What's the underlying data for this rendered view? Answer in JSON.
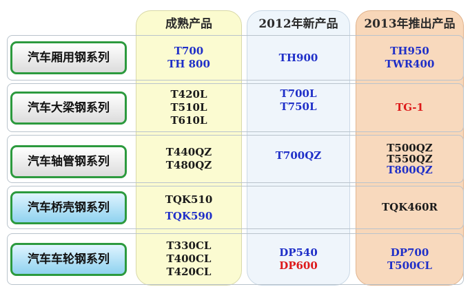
{
  "columns": {
    "mature": "成熟产品",
    "new_2012": "2012年新产品",
    "launch_2013": "2013年推出产品"
  },
  "colors": {
    "blue_text": "#1f2fc8",
    "black_text": "#1a1a1a",
    "red_text": "#dd1a1a",
    "label_border": "#2c9a3e"
  },
  "rows": [
    {
      "label": "汽车厢用钢系列",
      "mature": [
        "T700",
        "TH 800"
      ],
      "new_2012": [
        "TH900"
      ],
      "launch_2013": [
        "TH950",
        "TWR400"
      ]
    },
    {
      "label": "汽车大梁钢系列",
      "mature": [
        "T420L",
        "T510L",
        "T610L"
      ],
      "new_2012": [
        "T700L",
        "T750L"
      ],
      "launch_2013": [
        "TG-1"
      ]
    },
    {
      "label": "汽车轴管钢系列",
      "mature": [
        "T440QZ",
        "T480QZ"
      ],
      "new_2012": [
        "T700QZ"
      ],
      "launch_2013": [
        "T500QZ",
        "T550QZ",
        "T800QZ"
      ]
    },
    {
      "label": "汽车桥壳钢系列",
      "mature": [
        "TQK510",
        "TQK590"
      ],
      "new_2012": [],
      "launch_2013": [
        "TQK460R"
      ]
    },
    {
      "label": "汽车车轮钢系列",
      "mature": [
        "T330CL",
        "T400CL",
        "T420CL"
      ],
      "new_2012": [
        "DP540",
        "DP600"
      ],
      "launch_2013": [
        "DP700",
        "T500CL"
      ]
    }
  ]
}
